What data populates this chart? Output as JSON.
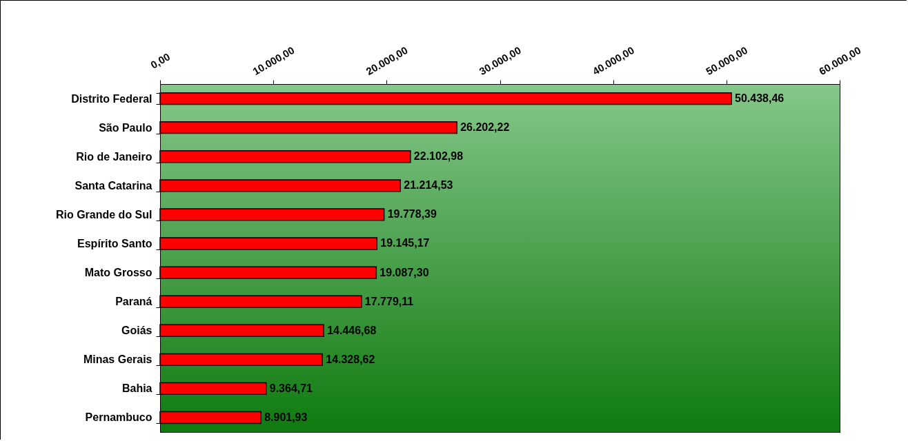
{
  "chart_data": {
    "type": "bar",
    "orientation": "horizontal",
    "categories": [
      "Distrito Federal",
      "São Paulo",
      "Rio de Janeiro",
      "Santa Catarina",
      "Rio Grande do Sul",
      "Espírito Santo",
      "Mato Grosso",
      "Paraná",
      "Goiás",
      "Minas Gerais",
      "Bahia",
      "Pernambuco"
    ],
    "values": [
      50438.46,
      26202.22,
      22102.98,
      21214.53,
      19778.39,
      19145.17,
      19087.3,
      17779.11,
      14446.68,
      14328.62,
      9364.71,
      8901.93
    ],
    "value_labels": [
      "50.438,46",
      "26.202,22",
      "22.102,98",
      "21.214,53",
      "19.778,39",
      "19.145,17",
      "19.087,30",
      "17.779,11",
      "14.446,68",
      "14.328,62",
      "9.364,71",
      "8.901,93"
    ],
    "color": "#ff0000",
    "xlim": [
      0,
      60000
    ],
    "xticks": [
      {
        "value": 0,
        "label": "0,00"
      },
      {
        "value": 10000,
        "label": "10.000,00"
      },
      {
        "value": 20000,
        "label": "20.000,00"
      },
      {
        "value": 30000,
        "label": "30.000,00"
      },
      {
        "value": 40000,
        "label": "40.000,00"
      },
      {
        "value": 50000,
        "label": "50.000,00"
      },
      {
        "value": 60000,
        "label": "60.000,00"
      }
    ],
    "grid": false
  }
}
